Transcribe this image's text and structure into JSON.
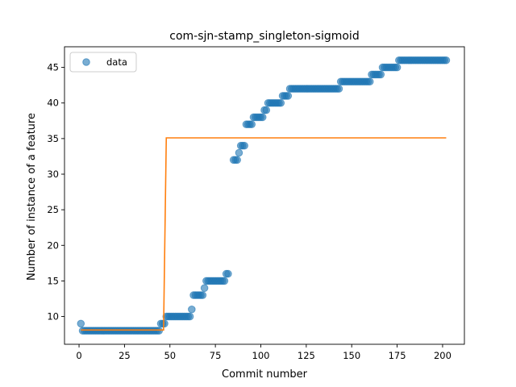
{
  "chart_data": {
    "type": "scatter",
    "title": "com-sjn-stamp_singleton-sigmoid",
    "xlabel": "Commit number",
    "ylabel": "Number of instance of a feature",
    "xlim": [
      -8,
      212
    ],
    "ylim": [
      6.1,
      47.9
    ],
    "xticks": [
      0,
      25,
      50,
      75,
      100,
      125,
      150,
      175,
      200
    ],
    "yticks": [
      10,
      15,
      20,
      25,
      30,
      35,
      40,
      45
    ],
    "legend": {
      "placement": "top-left",
      "entries": [
        "data"
      ]
    },
    "colors": {
      "data": "#1f77b4",
      "fit": "#ff7f0e"
    },
    "series": [
      {
        "name": "data",
        "kind": "points",
        "points": [
          [
            1,
            9
          ],
          [
            2,
            8
          ],
          [
            3,
            8
          ],
          [
            4,
            8
          ],
          [
            5,
            8
          ],
          [
            6,
            8
          ],
          [
            7,
            8
          ],
          [
            8,
            8
          ],
          [
            9,
            8
          ],
          [
            10,
            8
          ],
          [
            11,
            8
          ],
          [
            12,
            8
          ],
          [
            13,
            8
          ],
          [
            14,
            8
          ],
          [
            15,
            8
          ],
          [
            16,
            8
          ],
          [
            17,
            8
          ],
          [
            18,
            8
          ],
          [
            19,
            8
          ],
          [
            20,
            8
          ],
          [
            21,
            8
          ],
          [
            22,
            8
          ],
          [
            23,
            8
          ],
          [
            24,
            8
          ],
          [
            25,
            8
          ],
          [
            26,
            8
          ],
          [
            27,
            8
          ],
          [
            28,
            8
          ],
          [
            29,
            8
          ],
          [
            30,
            8
          ],
          [
            31,
            8
          ],
          [
            32,
            8
          ],
          [
            33,
            8
          ],
          [
            34,
            8
          ],
          [
            35,
            8
          ],
          [
            36,
            8
          ],
          [
            37,
            8
          ],
          [
            38,
            8
          ],
          [
            39,
            8
          ],
          [
            40,
            8
          ],
          [
            41,
            8
          ],
          [
            42,
            8
          ],
          [
            43,
            8
          ],
          [
            44,
            8
          ],
          [
            45,
            9
          ],
          [
            46,
            9
          ],
          [
            47,
            9
          ],
          [
            48,
            10
          ],
          [
            49,
            10
          ],
          [
            50,
            10
          ],
          [
            51,
            10
          ],
          [
            52,
            10
          ],
          [
            53,
            10
          ],
          [
            54,
            10
          ],
          [
            55,
            10
          ],
          [
            56,
            10
          ],
          [
            57,
            10
          ],
          [
            58,
            10
          ],
          [
            59,
            10
          ],
          [
            60,
            10
          ],
          [
            61,
            10
          ],
          [
            62,
            11
          ],
          [
            63,
            13
          ],
          [
            64,
            13
          ],
          [
            65,
            13
          ],
          [
            66,
            13
          ],
          [
            67,
            13
          ],
          [
            68,
            13
          ],
          [
            69,
            14
          ],
          [
            70,
            15
          ],
          [
            71,
            15
          ],
          [
            72,
            15
          ],
          [
            73,
            15
          ],
          [
            74,
            15
          ],
          [
            75,
            15
          ],
          [
            76,
            15
          ],
          [
            77,
            15
          ],
          [
            78,
            15
          ],
          [
            79,
            15
          ],
          [
            80,
            15
          ],
          [
            81,
            16
          ],
          [
            82,
            16
          ],
          [
            85,
            32
          ],
          [
            86,
            32
          ],
          [
            87,
            32
          ],
          [
            88,
            33
          ],
          [
            89,
            34
          ],
          [
            90,
            34
          ],
          [
            91,
            34
          ],
          [
            92,
            37
          ],
          [
            93,
            37
          ],
          [
            94,
            37
          ],
          [
            95,
            37
          ],
          [
            96,
            38
          ],
          [
            97,
            38
          ],
          [
            98,
            38
          ],
          [
            99,
            38
          ],
          [
            100,
            38
          ],
          [
            101,
            38
          ],
          [
            102,
            39
          ],
          [
            103,
            39
          ],
          [
            104,
            40
          ],
          [
            105,
            40
          ],
          [
            106,
            40
          ],
          [
            107,
            40
          ],
          [
            108,
            40
          ],
          [
            109,
            40
          ],
          [
            110,
            40
          ],
          [
            111,
            40
          ],
          [
            112,
            41
          ],
          [
            113,
            41
          ],
          [
            114,
            41
          ],
          [
            115,
            41
          ],
          [
            116,
            42
          ],
          [
            117,
            42
          ],
          [
            118,
            42
          ],
          [
            119,
            42
          ],
          [
            120,
            42
          ],
          [
            121,
            42
          ],
          [
            122,
            42
          ],
          [
            123,
            42
          ],
          [
            124,
            42
          ],
          [
            125,
            42
          ],
          [
            126,
            42
          ],
          [
            127,
            42
          ],
          [
            128,
            42
          ],
          [
            129,
            42
          ],
          [
            130,
            42
          ],
          [
            131,
            42
          ],
          [
            132,
            42
          ],
          [
            133,
            42
          ],
          [
            134,
            42
          ],
          [
            135,
            42
          ],
          [
            136,
            42
          ],
          [
            137,
            42
          ],
          [
            138,
            42
          ],
          [
            139,
            42
          ],
          [
            140,
            42
          ],
          [
            141,
            42
          ],
          [
            142,
            42
          ],
          [
            143,
            42
          ],
          [
            144,
            43
          ],
          [
            145,
            43
          ],
          [
            146,
            43
          ],
          [
            147,
            43
          ],
          [
            148,
            43
          ],
          [
            149,
            43
          ],
          [
            150,
            43
          ],
          [
            151,
            43
          ],
          [
            152,
            43
          ],
          [
            153,
            43
          ],
          [
            154,
            43
          ],
          [
            155,
            43
          ],
          [
            156,
            43
          ],
          [
            157,
            43
          ],
          [
            158,
            43
          ],
          [
            159,
            43
          ],
          [
            160,
            43
          ],
          [
            161,
            44
          ],
          [
            162,
            44
          ],
          [
            163,
            44
          ],
          [
            164,
            44
          ],
          [
            165,
            44
          ],
          [
            166,
            44
          ],
          [
            167,
            45
          ],
          [
            168,
            45
          ],
          [
            169,
            45
          ],
          [
            170,
            45
          ],
          [
            171,
            45
          ],
          [
            172,
            45
          ],
          [
            173,
            45
          ],
          [
            174,
            45
          ],
          [
            175,
            45
          ],
          [
            176,
            46
          ],
          [
            177,
            46
          ],
          [
            178,
            46
          ],
          [
            179,
            46
          ],
          [
            180,
            46
          ],
          [
            181,
            46
          ],
          [
            182,
            46
          ],
          [
            183,
            46
          ],
          [
            184,
            46
          ],
          [
            185,
            46
          ],
          [
            186,
            46
          ],
          [
            187,
            46
          ],
          [
            188,
            46
          ],
          [
            189,
            46
          ],
          [
            190,
            46
          ],
          [
            191,
            46
          ],
          [
            192,
            46
          ],
          [
            193,
            46
          ],
          [
            194,
            46
          ],
          [
            195,
            46
          ],
          [
            196,
            46
          ],
          [
            197,
            46
          ],
          [
            198,
            46
          ],
          [
            199,
            46
          ],
          [
            200,
            46
          ],
          [
            201,
            46
          ],
          [
            202,
            46
          ]
        ]
      },
      {
        "kind": "line",
        "points": [
          [
            1,
            8.1
          ],
          [
            46.5,
            8.1
          ],
          [
            48,
            35.1
          ],
          [
            202,
            35.1
          ]
        ]
      }
    ]
  }
}
